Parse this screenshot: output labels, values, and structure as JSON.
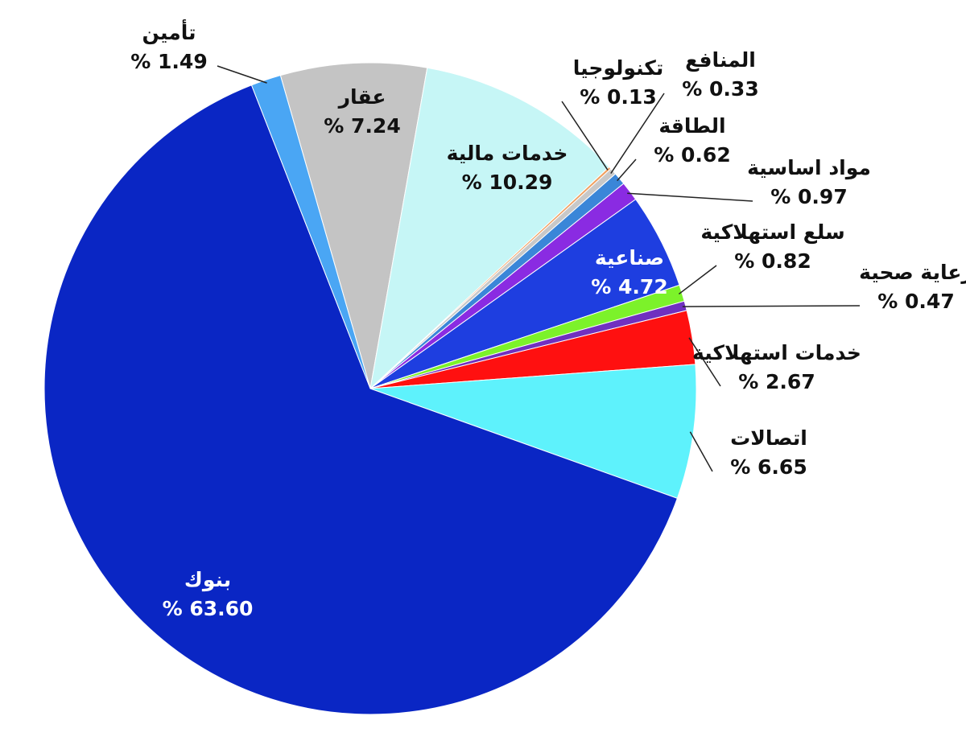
{
  "chart_data": {
    "type": "pie",
    "categories": [
      "عقار",
      "خدمات مالية",
      "تكنولوجيا",
      "المنافع",
      "الطاقة",
      "مواد اساسية",
      "صناعية",
      "سلع استهلاكية",
      "رعاية صحية",
      "خدمات استهلاكية",
      "اتصالات",
      "بنوك",
      "تأمين"
    ],
    "values": [
      7.24,
      10.29,
      0.13,
      0.33,
      0.62,
      0.97,
      4.72,
      0.82,
      0.47,
      2.67,
      6.65,
      63.6,
      1.49
    ],
    "value_labels": [
      "% 7.24",
      "% 10.29",
      "% 0.13",
      "% 0.33",
      "% 0.62",
      "% 0.97",
      "% 4.72",
      "% 0.82",
      "% 0.47",
      "% 2.67",
      "% 6.65",
      "% 63.60",
      "% 1.49"
    ],
    "colors": [
      "#c4c4c4",
      "#c6f6f6",
      "#f0a060",
      "#c8c8c8",
      "#3a86d8",
      "#8a2be2",
      "#1e3ee0",
      "#7cf22a",
      "#7030c0",
      "#ff1010",
      "#5ef2fc",
      "#0a26c4",
      "#4aa6f4"
    ]
  }
}
